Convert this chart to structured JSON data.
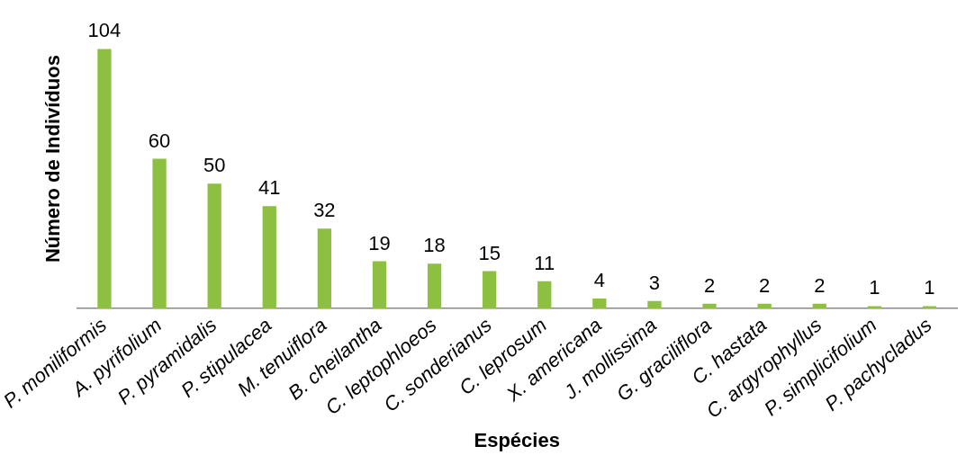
{
  "chart_data": {
    "type": "bar",
    "xlabel": "Espécies",
    "ylabel": "Número de Indivíduos",
    "categories": [
      "P. moniliformis",
      "A. pyrifolium",
      "P. pyramidalis",
      "P. stipulacea",
      "M. tenuiflora",
      "B. cheilantha",
      "C. leptophloeos",
      "C. sonderianus",
      "C. leprosum",
      "X. americana",
      "J. mollissima",
      "G. graciliflora",
      "C. hastata",
      "C. argyrophyllus",
      "P. simplicifolium",
      "P. pachycladus"
    ],
    "values": [
      104,
      60,
      50,
      41,
      32,
      19,
      18,
      15,
      11,
      4,
      3,
      2,
      2,
      2,
      1,
      1
    ],
    "color": "#8dc040",
    "data_labels": true,
    "grid": false,
    "legend": false
  }
}
